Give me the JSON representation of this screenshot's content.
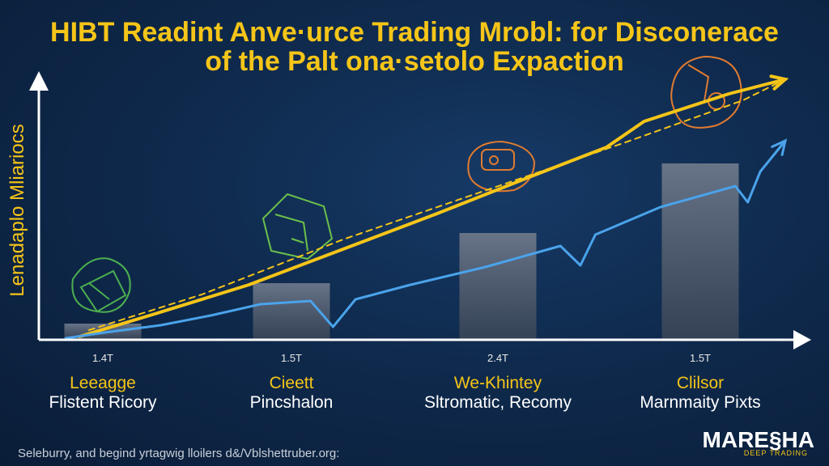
{
  "title": {
    "line1": "HIBT Readint Anve·urce Trading Mrobl: for Disconerace",
    "line2": "of the Palt ona·setolo Expaction"
  },
  "chart_data": {
    "type": "bar",
    "ylabel": "Lenadaplo Mliariocs",
    "categories": [
      {
        "label_yellow": "Leeagge",
        "label_white": "Flistent Ricory",
        "tick": "1.4T",
        "value": 1.0
      },
      {
        "label_yellow": "Cieett",
        "label_white": "Pincshalon",
        "tick": "1.5T",
        "value": 3.5
      },
      {
        "label_yellow": "We-Khintey",
        "label_white": "Sltromatic, Recomy",
        "tick": "2.4T",
        "value": 6.6
      },
      {
        "label_yellow": "Clilsor",
        "label_white": "Marnmaity Pixts",
        "tick": "1.5T",
        "value": 10.9
      }
    ],
    "ylim": [
      0,
      16
    ],
    "series": [
      {
        "name": "yellow-trend",
        "color": "#f5c518",
        "points": [
          [
            0.4,
            0.2
          ],
          [
            2,
            1.6
          ],
          [
            4,
            3.4
          ],
          [
            6,
            5.6
          ],
          [
            8,
            7.8
          ],
          [
            10,
            10.1
          ],
          [
            11.6,
            11.9
          ],
          [
            12.4,
            13.5
          ],
          [
            14.2,
            15.2
          ],
          [
            15.4,
            16.1
          ]
        ]
      },
      {
        "name": "yellow-dashed",
        "color": "#f5c518",
        "points": [
          [
            0.6,
            0.6
          ],
          [
            3,
            2.8
          ],
          [
            6,
            6.2
          ],
          [
            9,
            9.2
          ],
          [
            12,
            12.2
          ],
          [
            14.5,
            14.8
          ],
          [
            15.4,
            16.1
          ]
        ]
      },
      {
        "name": "blue-trend",
        "color": "#4aa3ea",
        "points": [
          [
            0.2,
            0.1
          ],
          [
            2,
            0.5
          ],
          [
            4,
            0.9
          ],
          [
            6,
            1.5
          ],
          [
            8,
            2.2
          ],
          [
            10,
            2.4
          ],
          [
            10.9,
            0.8
          ],
          [
            11.8,
            2.5
          ],
          [
            14,
            3.4
          ],
          [
            17,
            4.5
          ],
          [
            20,
            5.8
          ],
          [
            20.8,
            4.6
          ],
          [
            21.4,
            6.5
          ],
          [
            24,
            8.2
          ],
          [
            27,
            9.5
          ],
          [
            27.5,
            8.5
          ],
          [
            28,
            10.4
          ],
          [
            29,
            12.3
          ]
        ]
      }
    ],
    "colors": {
      "bar": "#5a6577",
      "axis": "#ffffff",
      "accent": "#f5c518",
      "blue": "#4aa3ea"
    }
  },
  "footer": "Seleburry, and begind yrtagwig lloilers d&/Vblshettruber.org:",
  "logo": {
    "main": "MARE§HA",
    "sub": "DEEP TRADING"
  }
}
